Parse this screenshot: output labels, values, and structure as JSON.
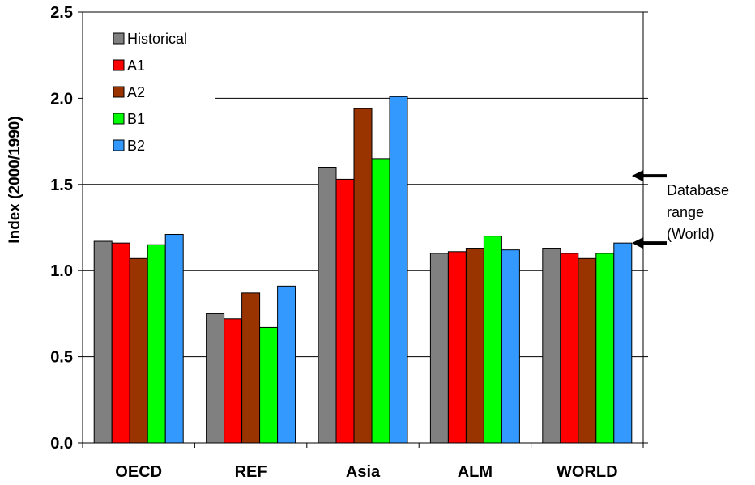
{
  "chart_data": {
    "type": "bar",
    "categories": [
      "OECD",
      "REF",
      "Asia",
      "ALM",
      "WORLD"
    ],
    "series": [
      {
        "name": "Historical",
        "color": "#808080",
        "values": [
          1.17,
          0.75,
          1.6,
          1.1,
          1.13
        ]
      },
      {
        "name": "A1",
        "color": "#ff0000",
        "values": [
          1.16,
          0.72,
          1.53,
          1.11,
          1.1
        ]
      },
      {
        "name": "A2",
        "color": "#993300",
        "values": [
          1.07,
          0.87,
          1.94,
          1.13,
          1.07
        ]
      },
      {
        "name": "B1",
        "color": "#00ff00",
        "values": [
          1.15,
          0.67,
          1.65,
          1.2,
          1.1
        ]
      },
      {
        "name": "B2",
        "color": "#3399ff",
        "values": [
          1.21,
          0.91,
          2.01,
          1.12,
          1.16
        ]
      }
    ],
    "ylabel": "Index (2000/1990)",
    "ylim": [
      0,
      2.5
    ],
    "yticks": [
      "0.0",
      "0.5",
      "1.0",
      "1.5",
      "2.0",
      "2.5"
    ],
    "grid": true,
    "legend_position": "top-left",
    "annotation": {
      "lines": [
        "Database",
        "range",
        "(World)"
      ],
      "arrow_values": [
        1.55,
        1.16
      ]
    }
  }
}
